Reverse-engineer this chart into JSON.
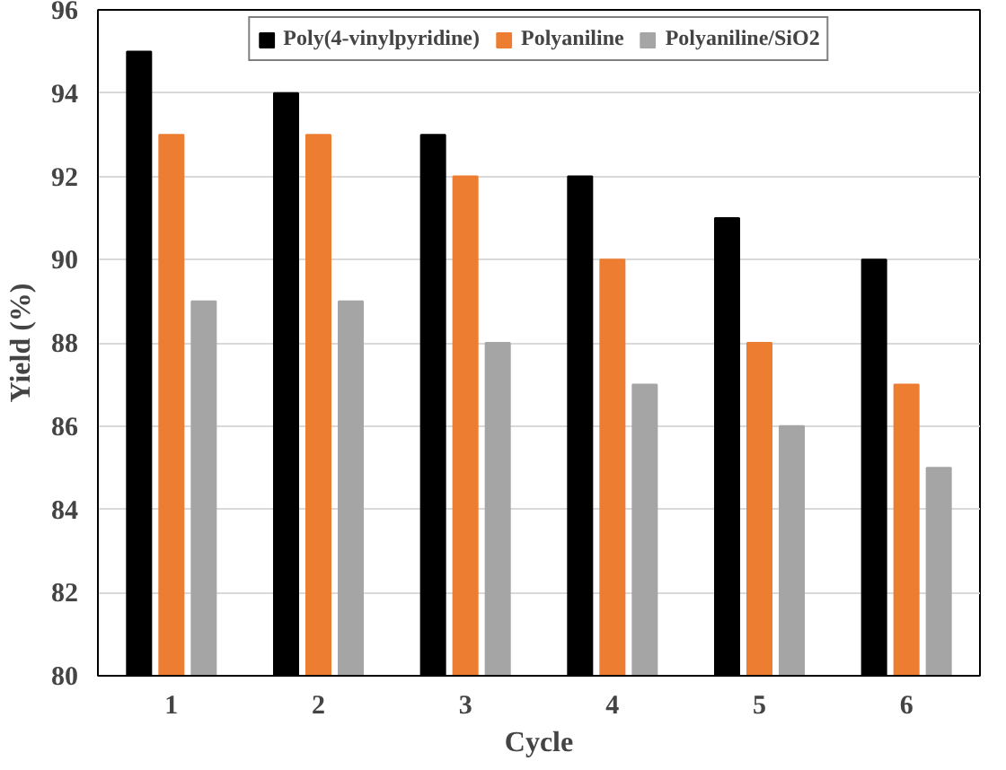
{
  "chart_data": {
    "type": "bar",
    "xlabel": "Cycle",
    "ylabel": "Yield (%)",
    "categories": [
      "1",
      "2",
      "3",
      "4",
      "5",
      "6"
    ],
    "series": [
      {
        "name": "Poly(4-vinylpyridine)",
        "color": "#000000",
        "values": [
          95,
          94,
          93,
          92,
          91,
          90
        ]
      },
      {
        "name": "Polyaniline",
        "color": "#ed7d31",
        "values": [
          93,
          93,
          92,
          90,
          88,
          87
        ]
      },
      {
        "name": "Polyaniline/SiO2",
        "color": "#a5a5a5",
        "values": [
          89,
          89,
          88,
          87,
          86,
          85
        ]
      }
    ],
    "ylim": [
      80,
      96
    ],
    "yticks": [
      80,
      82,
      84,
      86,
      88,
      90,
      92,
      94,
      96
    ],
    "grid": "y",
    "legend": "top"
  }
}
